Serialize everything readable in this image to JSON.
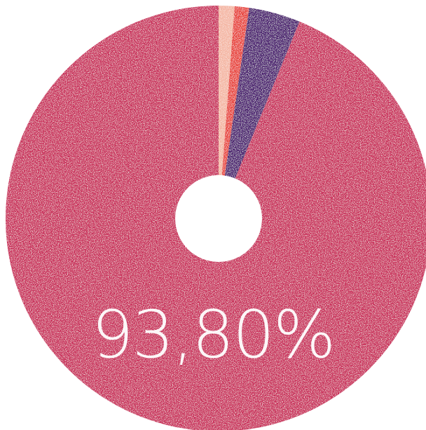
{
  "chart_data": {
    "type": "pie",
    "donut": true,
    "title": "",
    "center_label": "93,80%",
    "slices": [
      {
        "value": 93.8,
        "color": "#c92d5a"
      },
      {
        "value": 1.2,
        "color": "#f4b5a2"
      },
      {
        "value": 1.1,
        "color": "#e8433a"
      },
      {
        "value": 3.9,
        "color": "#4a1f6e"
      }
    ]
  }
}
